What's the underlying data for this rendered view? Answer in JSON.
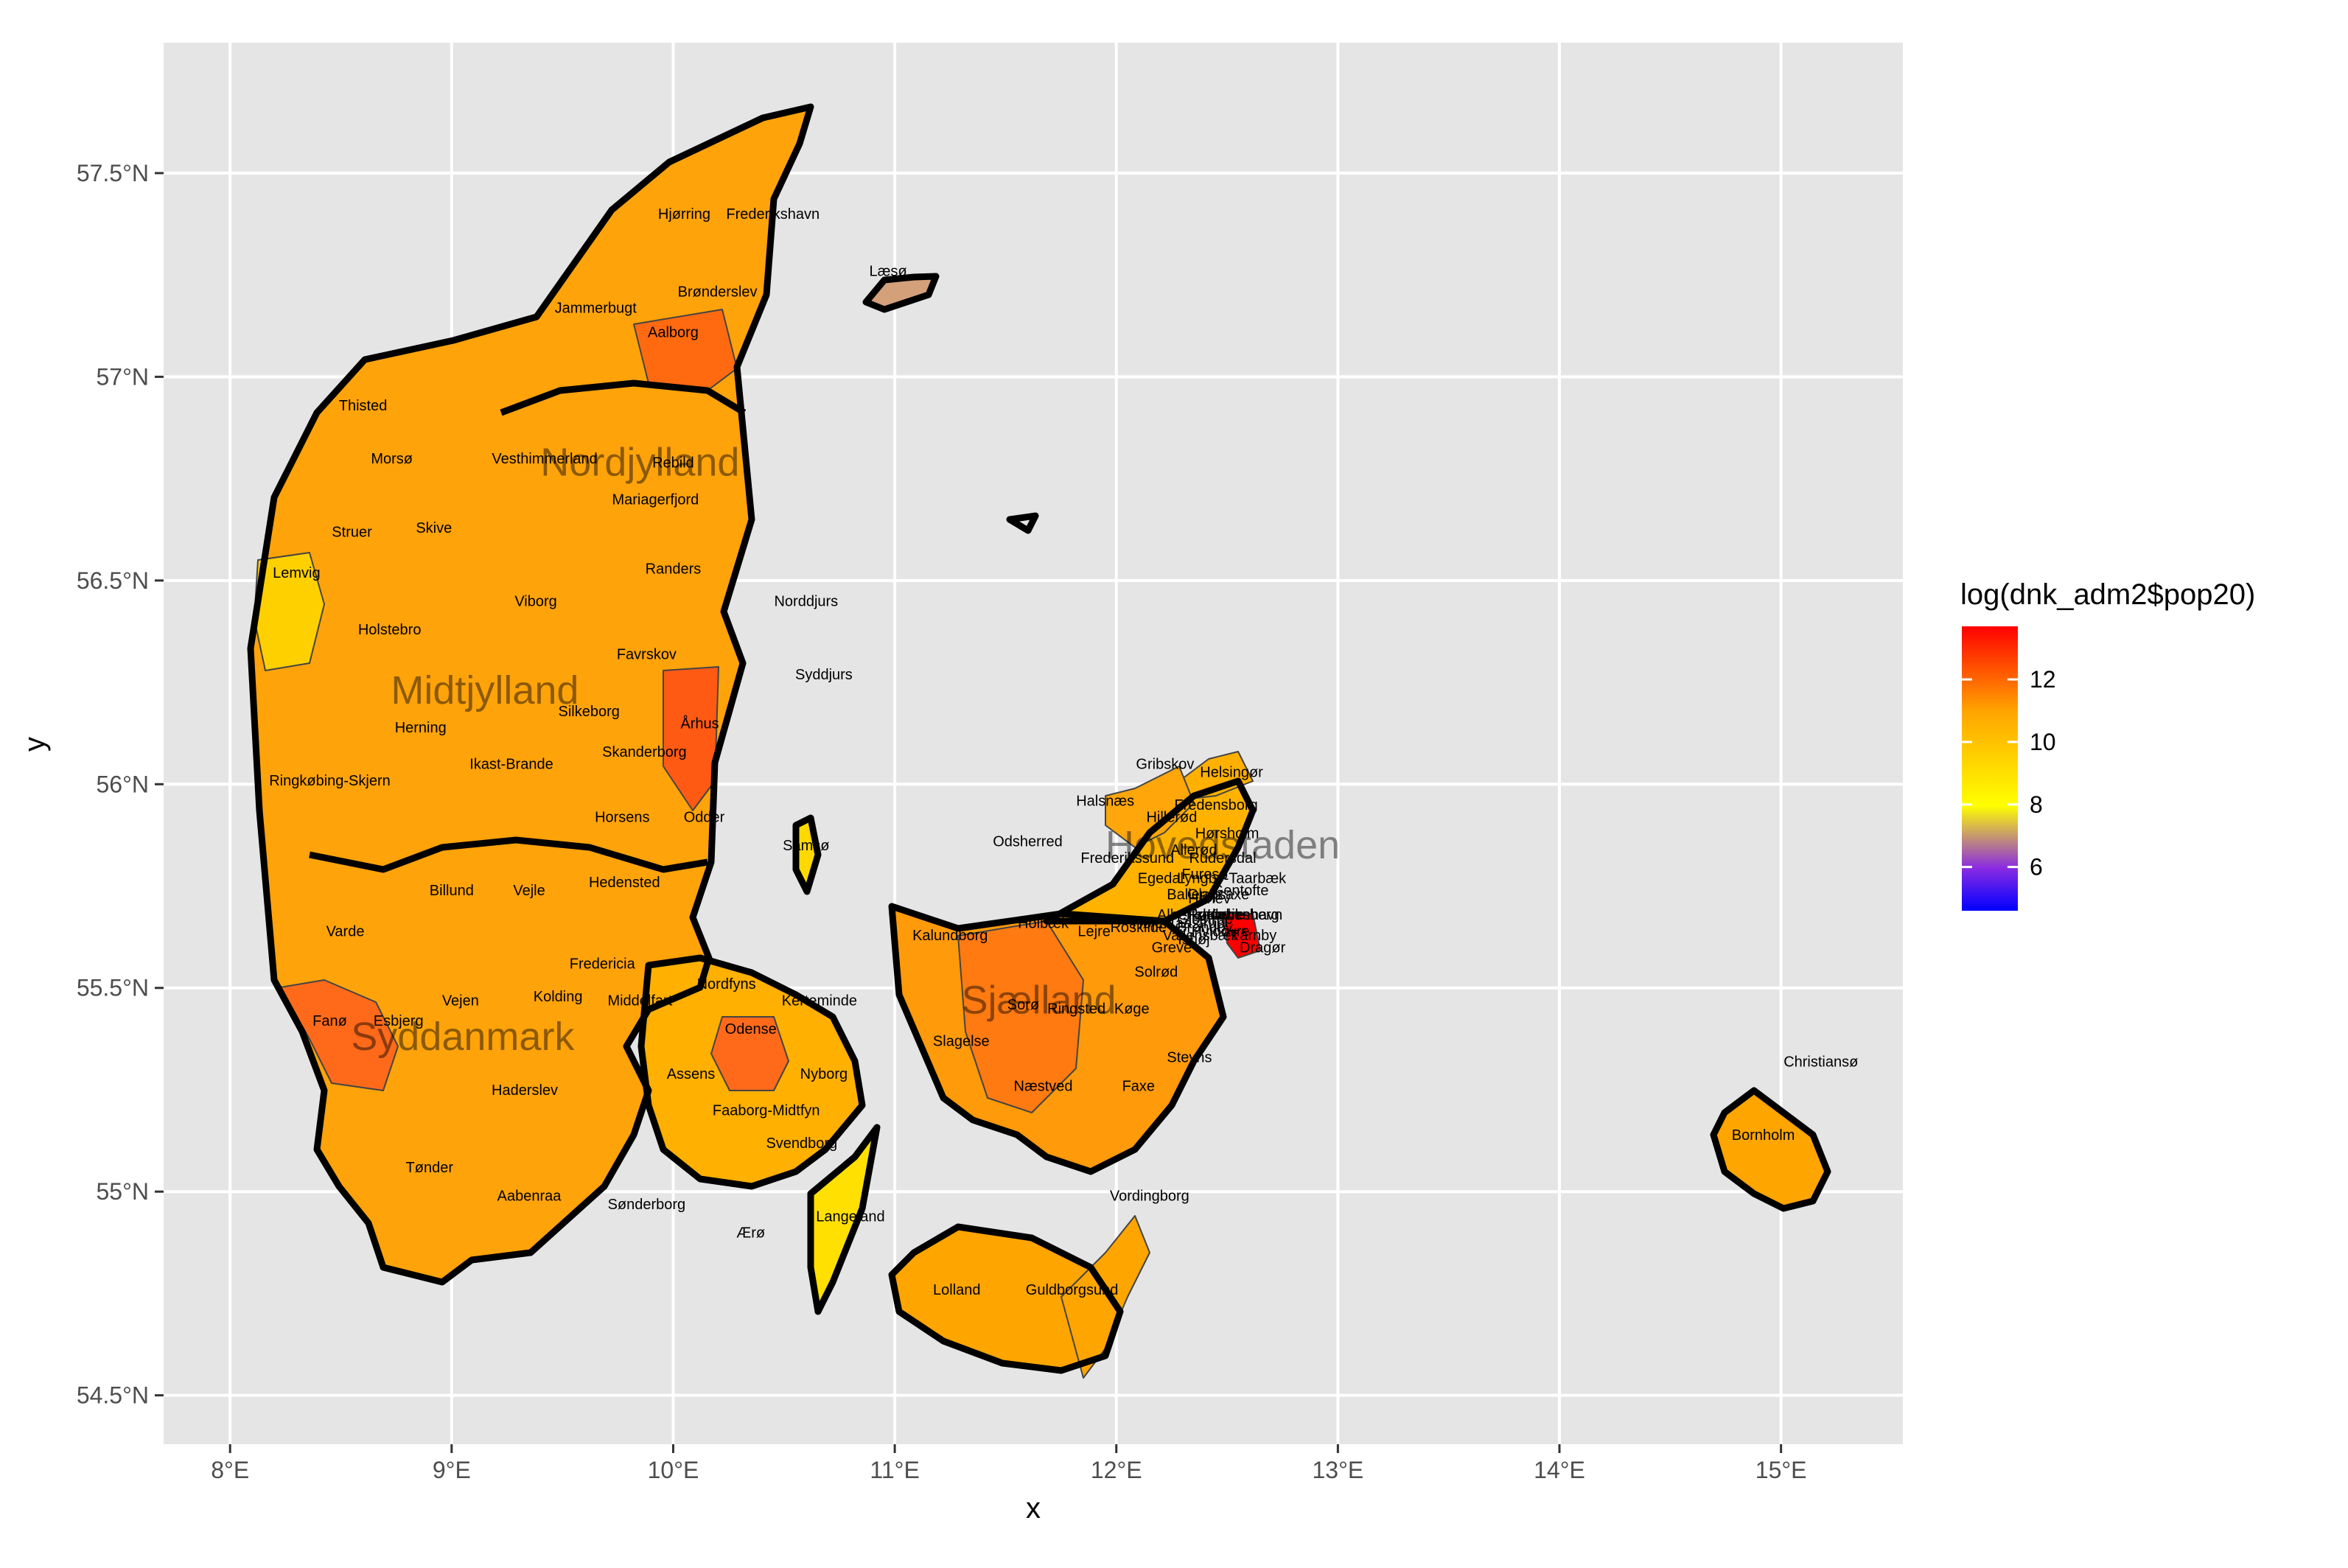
{
  "chart_data": {
    "type": "choropleth",
    "xlabel": "x",
    "ylabel": "y",
    "xlim": [
      7.7,
      15.55
    ],
    "ylim": [
      54.38,
      57.82
    ],
    "x_ticks": [
      {
        "value": 8,
        "label": "8°E"
      },
      {
        "value": 9,
        "label": "9°E"
      },
      {
        "value": 10,
        "label": "10°E"
      },
      {
        "value": 11,
        "label": "11°E"
      },
      {
        "value": 12,
        "label": "12°E"
      },
      {
        "value": 13,
        "label": "13°E"
      },
      {
        "value": 14,
        "label": "14°E"
      },
      {
        "value": 15,
        "label": "15°E"
      }
    ],
    "y_ticks": [
      {
        "value": 54.5,
        "label": "54.5°N"
      },
      {
        "value": 55.0,
        "label": "55°N"
      },
      {
        "value": 55.5,
        "label": "55.5°N"
      },
      {
        "value": 56.0,
        "label": "56°N"
      },
      {
        "value": 56.5,
        "label": "56.5°N"
      },
      {
        "value": 57.0,
        "label": "57°N"
      },
      {
        "value": 57.5,
        "label": "57.5°N"
      }
    ],
    "legend": {
      "title": "log(dnk_adm2$pop20)",
      "position": "right",
      "range": [
        4.6,
        13.7
      ],
      "colors": [
        "#0000ff",
        "#8a2be2",
        "#ffff00",
        "#ffa500",
        "#ff0000"
      ],
      "breaks": [
        {
          "value": 6,
          "label": "6"
        },
        {
          "value": 8,
          "label": "8"
        },
        {
          "value": 10,
          "label": "10"
        },
        {
          "value": 12,
          "label": "12"
        }
      ]
    },
    "regions": [
      {
        "name": "Nordjylland",
        "lon": 9.85,
        "lat": 56.79
      },
      {
        "name": "Midtjylland",
        "lon": 9.15,
        "lat": 56.23
      },
      {
        "name": "Syddanmark",
        "lon": 9.05,
        "lat": 55.38
      },
      {
        "name": "Sjælland",
        "lon": 11.65,
        "lat": 55.47
      },
      {
        "name": "Hovedstaden",
        "lon": 12.48,
        "lat": 55.85
      }
    ],
    "municipalities": [
      {
        "name": "Hjørring",
        "lon": 10.05,
        "lat": 57.4,
        "log_pop": 11.1
      },
      {
        "name": "Frederikshavn",
        "lon": 10.45,
        "lat": 57.4,
        "log_pop": 11.0
      },
      {
        "name": "Læsø",
        "lon": 10.97,
        "lat": 57.26,
        "log_pop": 7.6
      },
      {
        "name": "Brønderslev",
        "lon": 10.2,
        "lat": 57.21,
        "log_pop": 10.5
      },
      {
        "name": "Jammerbugt",
        "lon": 9.65,
        "lat": 57.17,
        "log_pop": 10.6
      },
      {
        "name": "Aalborg",
        "lon": 10.0,
        "lat": 57.11,
        "log_pop": 12.3
      },
      {
        "name": "Thisted",
        "lon": 8.6,
        "lat": 56.93,
        "log_pop": 10.7
      },
      {
        "name": "Morsø",
        "lon": 8.73,
        "lat": 56.8,
        "log_pop": 9.9
      },
      {
        "name": "Vesthimmerland",
        "lon": 9.42,
        "lat": 56.8,
        "log_pop": 10.6
      },
      {
        "name": "Rebild",
        "lon": 10.0,
        "lat": 56.79,
        "log_pop": 10.4
      },
      {
        "name": "Mariagerfjord",
        "lon": 9.92,
        "lat": 56.7,
        "log_pop": 10.7
      },
      {
        "name": "Struer",
        "lon": 8.55,
        "lat": 56.62,
        "log_pop": 10.0
      },
      {
        "name": "Skive",
        "lon": 8.92,
        "lat": 56.63,
        "log_pop": 10.7
      },
      {
        "name": "Lemvig",
        "lon": 8.3,
        "lat": 56.52,
        "log_pop": 9.9
      },
      {
        "name": "Randers",
        "lon": 10.0,
        "lat": 56.53,
        "log_pop": 11.5
      },
      {
        "name": "Norddjurs",
        "lon": 10.6,
        "lat": 56.45,
        "log_pop": 10.5
      },
      {
        "name": "Viborg",
        "lon": 9.38,
        "lat": 56.45,
        "log_pop": 11.5
      },
      {
        "name": "Holstebro",
        "lon": 8.72,
        "lat": 56.38,
        "log_pop": 10.9
      },
      {
        "name": "Favrskov",
        "lon": 9.88,
        "lat": 56.32,
        "log_pop": 10.8
      },
      {
        "name": "Syddjurs",
        "lon": 10.68,
        "lat": 56.27,
        "log_pop": 10.7
      },
      {
        "name": "Århus",
        "lon": 10.12,
        "lat": 56.15,
        "log_pop": 12.7
      },
      {
        "name": "Silkeborg",
        "lon": 9.62,
        "lat": 56.18,
        "log_pop": 11.4
      },
      {
        "name": "Herning",
        "lon": 8.86,
        "lat": 56.14,
        "log_pop": 11.4
      },
      {
        "name": "Skanderborg",
        "lon": 9.87,
        "lat": 56.08,
        "log_pop": 11.0
      },
      {
        "name": "Ikast-Brande",
        "lon": 9.27,
        "lat": 56.05,
        "log_pop": 10.7
      },
      {
        "name": "Ringkøbing-Skjern",
        "lon": 8.45,
        "lat": 56.01,
        "log_pop": 10.9
      },
      {
        "name": "Horsens",
        "lon": 9.77,
        "lat": 55.92,
        "log_pop": 11.4
      },
      {
        "name": "Odder",
        "lon": 10.14,
        "lat": 55.92,
        "log_pop": 10.0
      },
      {
        "name": "Samsø",
        "lon": 10.6,
        "lat": 55.85,
        "log_pop": 8.3
      },
      {
        "name": "Hedensted",
        "lon": 9.78,
        "lat": 55.76,
        "log_pop": 10.8
      },
      {
        "name": "Billund",
        "lon": 9.0,
        "lat": 55.74,
        "log_pop": 10.2
      },
      {
        "name": "Vejle",
        "lon": 9.35,
        "lat": 55.74,
        "log_pop": 11.7
      },
      {
        "name": "Varde",
        "lon": 8.52,
        "lat": 55.64,
        "log_pop": 10.8
      },
      {
        "name": "Fredericia",
        "lon": 9.68,
        "lat": 55.56,
        "log_pop": 10.9
      },
      {
        "name": "Vejen",
        "lon": 9.04,
        "lat": 55.47,
        "log_pop": 10.7
      },
      {
        "name": "Kolding",
        "lon": 9.48,
        "lat": 55.48,
        "log_pop": 11.5
      },
      {
        "name": "Middelfart",
        "lon": 9.85,
        "lat": 55.47,
        "log_pop": 10.6
      },
      {
        "name": "Nordfyns",
        "lon": 10.24,
        "lat": 55.51,
        "log_pop": 10.2
      },
      {
        "name": "Kerteminde",
        "lon": 10.66,
        "lat": 55.47,
        "log_pop": 10.1
      },
      {
        "name": "Fanø",
        "lon": 8.45,
        "lat": 55.42,
        "log_pop": 8.2
      },
      {
        "name": "Esbjerg",
        "lon": 8.76,
        "lat": 55.42,
        "log_pop": 11.6
      },
      {
        "name": "Odense",
        "lon": 10.35,
        "lat": 55.4,
        "log_pop": 12.2
      },
      {
        "name": "Assens",
        "lon": 10.08,
        "lat": 55.29,
        "log_pop": 10.6
      },
      {
        "name": "Nyborg",
        "lon": 10.68,
        "lat": 55.29,
        "log_pop": 10.4
      },
      {
        "name": "Haderslev",
        "lon": 9.33,
        "lat": 55.25,
        "log_pop": 10.9
      },
      {
        "name": "Faaborg-Midtfyn",
        "lon": 10.42,
        "lat": 55.2,
        "log_pop": 10.8
      },
      {
        "name": "Svendborg",
        "lon": 10.58,
        "lat": 55.12,
        "log_pop": 10.8
      },
      {
        "name": "Tønder",
        "lon": 8.9,
        "lat": 55.06,
        "log_pop": 10.5
      },
      {
        "name": "Aabenraa",
        "lon": 9.35,
        "lat": 54.99,
        "log_pop": 11.0
      },
      {
        "name": "Sønderborg",
        "lon": 9.88,
        "lat": 54.97,
        "log_pop": 11.2
      },
      {
        "name": "Ærø",
        "lon": 10.35,
        "lat": 54.9,
        "log_pop": 8.8
      },
      {
        "name": "Langeland",
        "lon": 10.8,
        "lat": 54.94,
        "log_pop": 9.5
      },
      {
        "name": "Lolland",
        "lon": 11.28,
        "lat": 54.76,
        "log_pop": 10.7
      },
      {
        "name": "Guldborgsund",
        "lon": 11.8,
        "lat": 54.76,
        "log_pop": 11.0
      },
      {
        "name": "Vordingborg",
        "lon": 12.15,
        "lat": 54.99,
        "log_pop": 10.7
      },
      {
        "name": "Næstved",
        "lon": 11.67,
        "lat": 55.26,
        "log_pop": 11.3
      },
      {
        "name": "Faxe",
        "lon": 12.1,
        "lat": 55.26,
        "log_pop": 10.5
      },
      {
        "name": "Stevns",
        "lon": 12.33,
        "lat": 55.33,
        "log_pop": 10.0
      },
      {
        "name": "Slagelse",
        "lon": 11.3,
        "lat": 55.37,
        "log_pop": 11.3
      },
      {
        "name": "Sorø",
        "lon": 11.58,
        "lat": 55.46,
        "log_pop": 10.4
      },
      {
        "name": "Ringsted",
        "lon": 11.82,
        "lat": 55.45,
        "log_pop": 10.5
      },
      {
        "name": "Køge",
        "lon": 12.07,
        "lat": 55.45,
        "log_pop": 11.0
      },
      {
        "name": "Solrød",
        "lon": 12.18,
        "lat": 55.54,
        "log_pop": 10.0
      },
      {
        "name": "Greve",
        "lon": 12.25,
        "lat": 55.6,
        "log_pop": 10.8
      },
      {
        "name": "Kalundborg",
        "lon": 11.25,
        "lat": 55.63,
        "log_pop": 10.8
      },
      {
        "name": "Holbæk",
        "lon": 11.67,
        "lat": 55.66,
        "log_pop": 11.1
      },
      {
        "name": "Lejre",
        "lon": 11.9,
        "lat": 55.64,
        "log_pop": 10.2
      },
      {
        "name": "Roskilde",
        "lon": 12.1,
        "lat": 55.65,
        "log_pop": 11.3
      },
      {
        "name": "Odsherred",
        "lon": 11.6,
        "lat": 55.86,
        "log_pop": 10.4
      },
      {
        "name": "Halsnæs",
        "lon": 11.95,
        "lat": 55.96,
        "log_pop": 10.3
      },
      {
        "name": "Gribskov",
        "lon": 12.22,
        "lat": 56.05,
        "log_pop": 10.7
      },
      {
        "name": "Helsingør",
        "lon": 12.52,
        "lat": 56.03,
        "log_pop": 11.1
      },
      {
        "name": "Hillerød",
        "lon": 12.25,
        "lat": 55.92,
        "log_pop": 10.8
      },
      {
        "name": "Fredensborg",
        "lon": 12.45,
        "lat": 55.95,
        "log_pop": 10.7
      },
      {
        "name": "Frederikssund",
        "lon": 12.05,
        "lat": 55.82,
        "log_pop": 10.8
      },
      {
        "name": "Hørsholm",
        "lon": 12.5,
        "lat": 55.88,
        "log_pop": 10.1
      },
      {
        "name": "Allerød",
        "lon": 12.35,
        "lat": 55.84,
        "log_pop": 10.1
      },
      {
        "name": "Egedal",
        "lon": 12.2,
        "lat": 55.77,
        "log_pop": 10.6
      },
      {
        "name": "Rudersdal",
        "lon": 12.48,
        "lat": 55.82,
        "log_pop": 10.9
      },
      {
        "name": "Lyngby-Taarbæk",
        "lon": 12.52,
        "lat": 55.77,
        "log_pop": 10.9
      },
      {
        "name": "Gentofte",
        "lon": 12.56,
        "lat": 55.74,
        "log_pop": 11.1
      },
      {
        "name": "Ballerup",
        "lon": 12.35,
        "lat": 55.73,
        "log_pop": 10.8
      },
      {
        "name": "Furesø",
        "lon": 12.4,
        "lat": 55.78,
        "log_pop": 10.6
      },
      {
        "name": "Gladsaxe",
        "lon": 12.46,
        "lat": 55.73,
        "log_pop": 11.1
      },
      {
        "name": "Herlev",
        "lon": 12.42,
        "lat": 55.72,
        "log_pop": 10.2
      },
      {
        "name": "Rødovre",
        "lon": 12.45,
        "lat": 55.68,
        "log_pop": 10.6
      },
      {
        "name": "Frederiksberg",
        "lon": 12.53,
        "lat": 55.68,
        "log_pop": 11.5
      },
      {
        "name": "København",
        "lon": 12.58,
        "lat": 55.68,
        "log_pop": 13.4
      },
      {
        "name": "Hvidovre",
        "lon": 12.47,
        "lat": 55.64,
        "log_pop": 10.9
      },
      {
        "name": "Brøndby",
        "lon": 12.4,
        "lat": 55.65,
        "log_pop": 10.5
      },
      {
        "name": "Ishøj",
        "lon": 12.35,
        "lat": 55.62,
        "log_pop": 10.0
      },
      {
        "name": "Vallensbæk",
        "lon": 12.38,
        "lat": 55.63,
        "log_pop": 9.6
      },
      {
        "name": "Høje-Taastrup",
        "lon": 12.28,
        "lat": 55.66,
        "log_pop": 10.8
      },
      {
        "name": "Albertslund",
        "lon": 12.35,
        "lat": 55.68,
        "log_pop": 10.2
      },
      {
        "name": "Glostrup",
        "lon": 12.4,
        "lat": 55.67,
        "log_pop": 10.0
      },
      {
        "name": "Dragør",
        "lon": 12.66,
        "lat": 55.6,
        "log_pop": 9.6
      },
      {
        "name": "Tårnby",
        "lon": 12.62,
        "lat": 55.63,
        "log_pop": 10.7
      },
      {
        "name": "Bornholm",
        "lon": 14.92,
        "lat": 55.14,
        "log_pop": 10.6
      },
      {
        "name": "Christiansø",
        "lon": 15.18,
        "lat": 55.32,
        "log_pop": 4.6
      }
    ]
  }
}
